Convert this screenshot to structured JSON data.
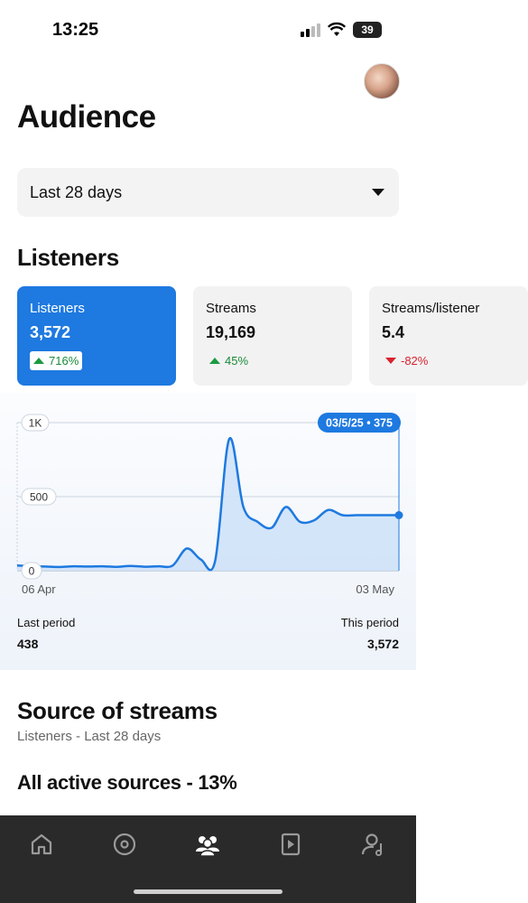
{
  "status": {
    "time": "13:25",
    "battery": "39"
  },
  "page": {
    "title": "Audience"
  },
  "date_filter": {
    "value": "Last 28 days"
  },
  "listeners_section": {
    "title": "Listeners"
  },
  "cards": [
    {
      "label": "Listeners",
      "value": "3,572",
      "change": "716%",
      "direction": "up",
      "active": true
    },
    {
      "label": "Streams",
      "value": "19,169",
      "change": "45%",
      "direction": "up",
      "active": false
    },
    {
      "label": "Streams/listener",
      "value": "5.4",
      "change": "-82%",
      "direction": "down",
      "active": false
    }
  ],
  "chart_data": {
    "type": "area",
    "y_ticks": [
      "1K",
      "500",
      "0"
    ],
    "ylim": [
      0,
      1000
    ],
    "x_labels": [
      "06 Apr",
      "03 May"
    ],
    "tooltip": "03/5/25 • 375",
    "accent": "#1e79e0",
    "fill": "#cfe2f8",
    "x": [
      "06 Apr",
      "07 Apr",
      "08 Apr",
      "09 Apr",
      "10 Apr",
      "11 Apr",
      "12 Apr",
      "13 Apr",
      "14 Apr",
      "15 Apr",
      "16 Apr",
      "17 Apr",
      "18 Apr",
      "19 Apr",
      "20 Apr",
      "21 Apr",
      "22 Apr",
      "23 Apr",
      "24 Apr",
      "25 Apr",
      "26 Apr",
      "27 Apr",
      "28 Apr",
      "29 Apr",
      "30 Apr",
      "01 May",
      "02 May",
      "03 May"
    ],
    "values": [
      35,
      30,
      28,
      25,
      30,
      28,
      30,
      26,
      32,
      27,
      30,
      35,
      150,
      75,
      65,
      890,
      430,
      330,
      290,
      430,
      330,
      340,
      410,
      375,
      375,
      375,
      375,
      375
    ]
  },
  "periods": {
    "last_label": "Last period",
    "last_value": "438",
    "this_label": "This period",
    "this_value": "3,572"
  },
  "sources": {
    "title": "Source of streams",
    "subtitle": "Listeners - Last 28 days",
    "heading": "All active sources - 13%"
  },
  "tabs": [
    {
      "icon": "home-icon"
    },
    {
      "icon": "disc-icon"
    },
    {
      "icon": "audience-icon",
      "active": true
    },
    {
      "icon": "play-icon"
    },
    {
      "icon": "artist-icon"
    }
  ]
}
